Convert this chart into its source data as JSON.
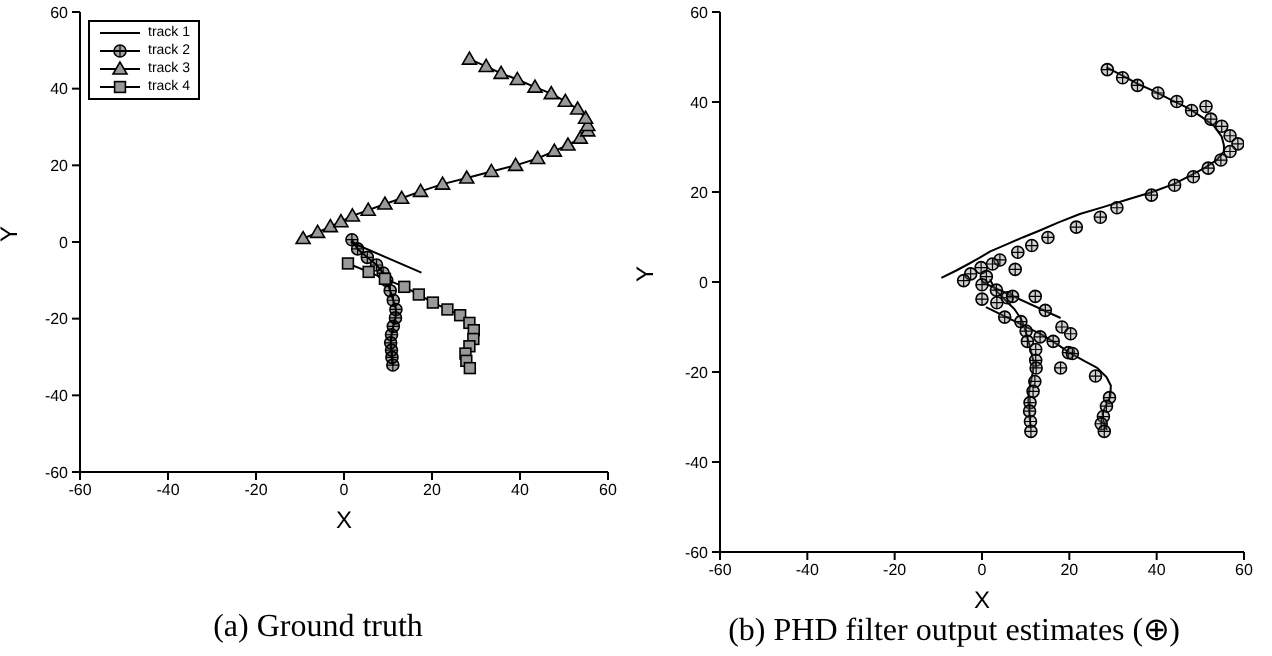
{
  "chart_data": [
    {
      "type": "line",
      "title": "(a) Ground truth",
      "xlabel": "X",
      "ylabel": "Y",
      "xlim": [
        -60,
        60
      ],
      "ylim": [
        -60,
        60
      ],
      "xticks": [
        -60,
        -40,
        -20,
        0,
        20,
        40,
        60
      ],
      "yticks": [
        -60,
        -40,
        -20,
        0,
        20,
        40,
        60
      ],
      "grid": false,
      "legend": "top left",
      "series": [
        {
          "name": "track 1",
          "color": "#000000",
          "x": [
            1.5,
            17.6
          ],
          "values": [
            0,
            -8
          ]
        },
        {
          "name": "track 2",
          "color": "#000000",
          "marker": "circle",
          "x": [
            1.8,
            3.1,
            5.3,
            7.4,
            8.9,
            9.7,
            10.5,
            11.2,
            11.8,
            11.7,
            11.2,
            10.8,
            10.6,
            10.8,
            10.9,
            11.1
          ],
          "values": [
            0.6,
            -1.8,
            -4,
            -6,
            -8.1,
            -10,
            -12.7,
            -15.2,
            -17.6,
            -19.8,
            -22,
            -24.2,
            -26.3,
            -28.2,
            -30.1,
            -32.1
          ]
        },
        {
          "name": "track 3",
          "color": "#000000",
          "marker": "triangle",
          "x": [
            -9.3,
            -6,
            -3.1,
            -0.7,
            1.9,
            5.5,
            9.3,
            13.1,
            17.4,
            22.4,
            27.9,
            33.5,
            39,
            44,
            47.8,
            50.9,
            53.7,
            55.4,
            55.4,
            54.9,
            53.1,
            50.3,
            47.1,
            43.4,
            39.4,
            35.7,
            32.3,
            28.5
          ],
          "values": [
            0.9,
            2.5,
            4,
            5.3,
            6.8,
            8.3,
            9.9,
            11.4,
            13.2,
            15.1,
            16.7,
            18.4,
            20,
            21.8,
            23.7,
            25.3,
            27.1,
            29,
            30.4,
            32.3,
            34.7,
            36.7,
            38.7,
            40.4,
            42.4,
            44,
            45.8,
            47.7
          ]
        },
        {
          "name": "track 4",
          "color": "#000000",
          "marker": "square",
          "x": [
            0.9,
            5.6,
            9.3,
            13.7,
            17,
            20.2,
            23.5,
            26.4,
            28.5,
            29.5,
            29.4,
            28.5,
            27.6,
            27.8,
            28.6
          ],
          "values": [
            -5.6,
            -7.8,
            -9.6,
            -11.7,
            -13.7,
            -15.8,
            -17.6,
            -19.1,
            -21.1,
            -23,
            -25.3,
            -27.2,
            -29.1,
            -31,
            -32.9
          ]
        }
      ]
    },
    {
      "type": "line",
      "title": "(b) PHD filter output estimates (⊕)",
      "xlabel": "X",
      "ylabel": "Y",
      "xlim": [
        -60,
        60
      ],
      "ylim": [
        -60,
        60
      ],
      "xticks": [
        -60,
        -40,
        -20,
        0,
        20,
        40,
        60
      ],
      "yticks": [
        -60,
        -40,
        -20,
        0,
        20,
        40,
        60
      ],
      "grid": false,
      "legend": false,
      "series": [
        {
          "color": "#000000",
          "x": [
            0,
            18
          ],
          "values": [
            0,
            -8
          ]
        },
        {
          "color": "#000000",
          "marker": "none",
          "x": [
            1.8,
            3.1,
            5.3,
            7.4,
            8.9,
            9.7,
            10.5,
            11.2,
            11.8,
            11.7,
            11.2,
            10.8,
            10.6,
            10.8,
            10.9,
            11.1
          ],
          "values": [
            0.6,
            -1.8,
            -4,
            -6,
            -8.1,
            -10,
            -12.7,
            -15.2,
            -17.6,
            -19.8,
            -22,
            -24.2,
            -26.3,
            -28.2,
            -30.1,
            -32.1
          ]
        },
        {
          "color": "#000000",
          "marker": "none",
          "x": [
            -9.3,
            -6,
            -3.1,
            -0.7,
            1.9,
            5.5,
            9.3,
            13.1,
            17.4,
            22.4,
            27.9,
            33.5,
            39,
            44,
            47.8,
            50.9,
            53.7,
            55.4,
            55.4,
            54.9,
            53.1,
            50.3,
            47.1,
            43.4,
            39.4,
            35.7,
            32.3,
            28.5
          ],
          "values": [
            0.9,
            2.5,
            4,
            5.3,
            6.8,
            8.3,
            9.9,
            11.4,
            13.2,
            15.1,
            16.7,
            18.4,
            20,
            21.8,
            23.7,
            25.3,
            27.1,
            29,
            30.4,
            32.3,
            34.7,
            36.7,
            38.7,
            40.4,
            42.4,
            44,
            45.8,
            47.7
          ]
        },
        {
          "color": "#000000",
          "marker": "none",
          "x": [
            0.9,
            5.6,
            9.3,
            13.7,
            17,
            20.2,
            23.5,
            26.4,
            28.5,
            29.5,
            29.4,
            28.5,
            27.6,
            27.8,
            28.6
          ],
          "values": [
            -5.6,
            -7.8,
            -9.6,
            -11.7,
            -13.7,
            -15.8,
            -17.6,
            -19.1,
            -21.1,
            -23,
            -25.3,
            -27.2,
            -29.1,
            -31,
            -32.9
          ]
        },
        {
          "type": "scatter",
          "color": "#7a7a7a",
          "marker": "circle",
          "x": [
            28.7,
            32.2,
            35.6,
            40.3,
            44.6,
            48,
            51.3,
            52.4,
            54.9,
            56.8,
            58.6,
            56.8,
            54.7,
            51.8,
            48.4,
            44.1,
            38.8,
            30.9,
            27.1,
            21.6,
            15.1,
            11.4,
            8.2,
            7.6,
            4.1,
            2.4,
            -0.2,
            -2.6,
            -4.2,
            1,
            0,
            0,
            3.3,
            3.4,
            5.8,
            7,
            12.2,
            14.5,
            18.3,
            20.3,
            5.2,
            8.9,
            10.1,
            10.4,
            13.3,
            16.3,
            19.8,
            20.7,
            18,
            26,
            29.2,
            28.5,
            27.8,
            27.3,
            28,
            12.3,
            12.3,
            12.4,
            12.1,
            11.7,
            11,
            10.9,
            11.1,
            11.2
          ],
          "values": [
            47.2,
            45.4,
            43.7,
            42,
            40.1,
            38.1,
            39,
            36.2,
            34.6,
            32.5,
            30.7,
            29,
            27.1,
            25.3,
            23.4,
            21.5,
            19.3,
            16.5,
            14.4,
            12.2,
            9.9,
            8.1,
            6.6,
            2.8,
            4.9,
            4,
            3.2,
            1.8,
            0.3,
            1.2,
            -0.6,
            -3.8,
            -1.8,
            -4.6,
            -3.5,
            -3.2,
            -3.2,
            -6.3,
            -10,
            -11.5,
            -7.8,
            -8.8,
            -10.9,
            -13.2,
            -12.2,
            -13.2,
            -15.7,
            -15.9,
            -19.1,
            -20.9,
            -25.7,
            -27.6,
            -29.9,
            -31.5,
            -33.2,
            -15,
            -17.4,
            -19.1,
            -22.1,
            -24.3,
            -26.8,
            -28.7,
            -31,
            -33.2
          ]
        }
      ]
    }
  ]
}
